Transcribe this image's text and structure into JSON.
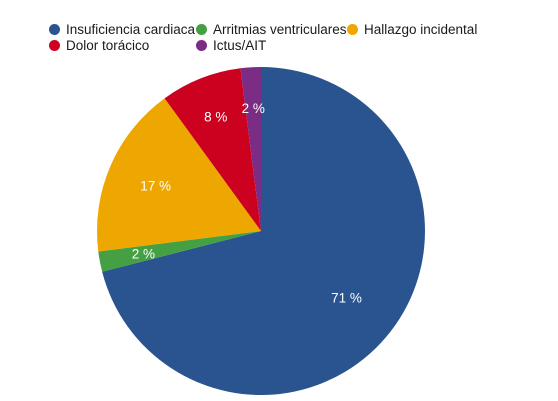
{
  "chart_data": {
    "type": "pie",
    "title": "",
    "categories": [
      "Insuficiencia cardiaca",
      "Arritmias ventriculares",
      "Hallazgo incidental",
      "Dolor torácico",
      "Ictus/AIT"
    ],
    "values": [
      71,
      2,
      17,
      8,
      2
    ],
    "colors": [
      "#29548f",
      "#44a042",
      "#eea700",
      "#cc0120",
      "#7b2c85"
    ],
    "labels": [
      "71 %",
      "2 %",
      "17 %",
      "8 %",
      "2 %"
    ],
    "legend_position": "top-left"
  }
}
